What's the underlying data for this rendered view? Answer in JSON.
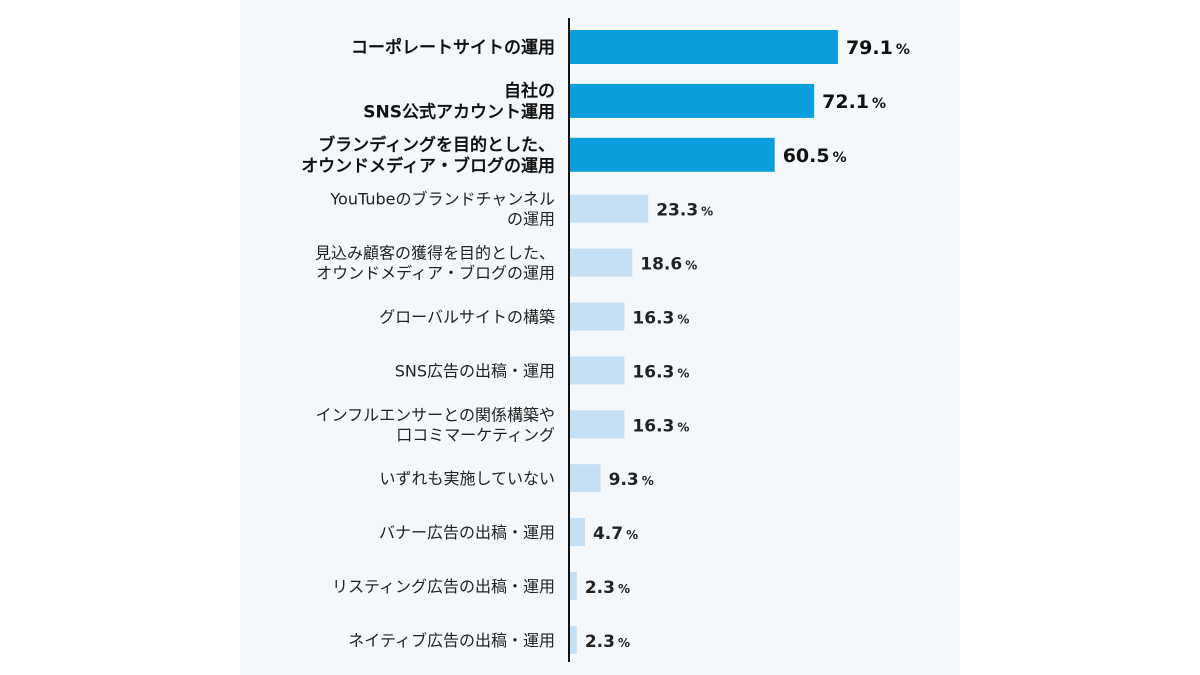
{
  "chart_data": {
    "type": "bar",
    "orientation": "horizontal",
    "unit": "%",
    "xlim": [
      0,
      100
    ],
    "categories": [
      [
        "コーポレートサイトの運用"
      ],
      [
        "自社の",
        "SNS公式アカウント運用"
      ],
      [
        "ブランディングを目的とした、",
        "オウンドメディア・ブログの運用"
      ],
      [
        "YouTubeのブランドチャンネル",
        "の運用"
      ],
      [
        "見込み顧客の獲得を目的とした、",
        "オウンドメディア・ブログの運用"
      ],
      [
        "グローバルサイトの構築"
      ],
      [
        "SNS広告の出稿・運用"
      ],
      [
        "インフルエンサーとの関係構築や",
        "口コミマーケティング"
      ],
      [
        "いずれも実施していない"
      ],
      [
        "バナー広告の出稿・運用"
      ],
      [
        "リスティング広告の出稿・運用"
      ],
      [
        "ネイティブ広告の出稿・運用"
      ]
    ],
    "values": [
      79.1,
      72.1,
      60.5,
      23.3,
      18.6,
      16.3,
      16.3,
      16.3,
      9.3,
      4.7,
      2.3,
      2.3
    ],
    "value_labels": [
      "79.1",
      "72.1",
      "60.5",
      "23.3",
      "18.6",
      "16.3",
      "16.3",
      "16.3",
      "9.3",
      "4.7",
      "2.3",
      "2.3"
    ],
    "highlighted_count": 3,
    "colors": {
      "highlight": "#0a9fdc",
      "normal": "#c5e0f5",
      "axis": "#111111",
      "panel_background": "#f4f8fb"
    }
  }
}
